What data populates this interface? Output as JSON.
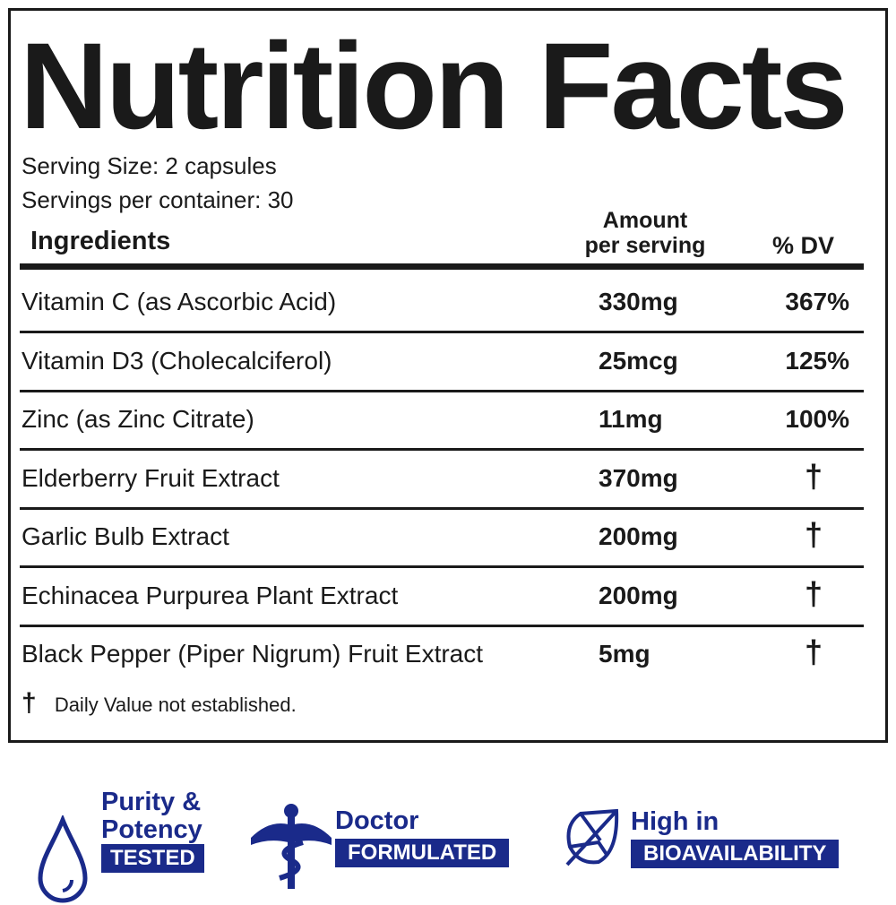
{
  "title": "Nutrition Facts",
  "serving_size": "Serving Size: 2 capsules",
  "servings_per_container": "Servings per container: 30",
  "headers": {
    "ingredients": "Ingredients",
    "amount_line1": "Amount",
    "amount_line2": "per serving",
    "dv": "% DV"
  },
  "rows": [
    {
      "name": "Vitamin C (as Ascorbic Acid)",
      "amount": "330mg",
      "dv": "367%"
    },
    {
      "name": "Vitamin D3 (Cholecalciferol)",
      "amount": "25mcg",
      "dv": "125%"
    },
    {
      "name": "Zinc (as Zinc Citrate)",
      "amount": "11mg",
      "dv": "100%"
    },
    {
      "name": "Elderberry Fruit Extract",
      "amount": "370mg",
      "dv": "†"
    },
    {
      "name": "Garlic Bulb Extract",
      "amount": "200mg",
      "dv": "†"
    },
    {
      "name": "Echinacea Purpurea Plant Extract",
      "amount": "200mg",
      "dv": "†"
    },
    {
      "name": "Black Pepper (Piper Nigrum) Fruit Extract",
      "amount": "5mg",
      "dv": "†"
    }
  ],
  "footnote": {
    "symbol": "†",
    "text": "Daily Value not established."
  },
  "badges": [
    {
      "icon": "water-drop-icon",
      "line1": "Purity &",
      "line2": "Potency",
      "label": "TESTED"
    },
    {
      "icon": "caduceus-icon",
      "line1": "Doctor",
      "label": "FORMULATED"
    },
    {
      "icon": "leaf-icon",
      "line1": "High in",
      "label": "BIOAVAILABILITY"
    }
  ],
  "colors": {
    "brand": "#1a2a8a",
    "text": "#1a1a1a"
  }
}
